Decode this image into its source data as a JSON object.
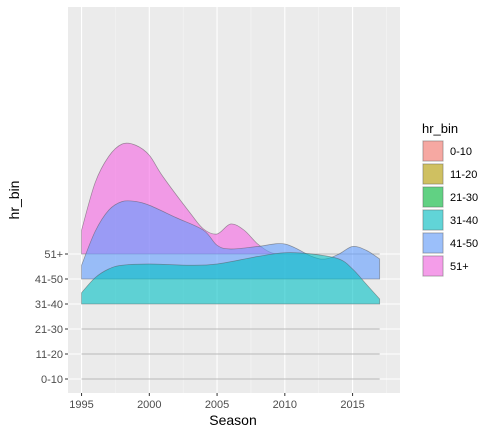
{
  "chart_data": {
    "type": "area",
    "subtype": "ridgeline-density",
    "xlabel": "Season",
    "ylabel": "hr_bin",
    "xlim": [
      1994.0,
      2018.5
    ],
    "x_ticks": [
      1995,
      2000,
      2005,
      2010,
      2015
    ],
    "categories": [
      "0-10",
      "11-20",
      "21-30",
      "31-40",
      "41-50",
      "51+"
    ],
    "row_scale": 1.0,
    "legend": {
      "title": "hr_bin",
      "position": "right"
    },
    "grid": true,
    "panel_background": "#ebebeb",
    "series": [
      {
        "name": "0-10",
        "color": "#F8766D",
        "x": [
          1995,
          2017
        ],
        "density": [
          0.0,
          0.0
        ]
      },
      {
        "name": "11-20",
        "color": "#B79F00",
        "x": [
          1995,
          2017
        ],
        "density": [
          0.0,
          0.0
        ]
      },
      {
        "name": "21-30",
        "color": "#00BA38",
        "x": [
          1995,
          2017
        ],
        "density": [
          0.0,
          0.0
        ]
      },
      {
        "name": "31-40",
        "color": "#00BFC4",
        "x": [
          1995,
          1996,
          1997,
          1998,
          2000,
          2003,
          2005,
          2008,
          2010,
          2012,
          2014,
          2015,
          2016,
          2017
        ],
        "density": [
          0.45,
          1.05,
          1.4,
          1.55,
          1.6,
          1.55,
          1.6,
          1.9,
          2.05,
          2.0,
          1.8,
          1.4,
          0.8,
          0.2
        ]
      },
      {
        "name": "41-50",
        "color": "#619CFF",
        "x": [
          1995,
          1996,
          1997,
          1998,
          1999,
          2000,
          2002,
          2004,
          2005,
          2006,
          2008,
          2010,
          2012,
          2013,
          2014,
          2015,
          2016,
          2017
        ],
        "density": [
          0.55,
          1.9,
          2.75,
          3.1,
          3.1,
          2.95,
          2.45,
          1.95,
          1.35,
          1.2,
          1.3,
          1.4,
          0.9,
          0.8,
          1.0,
          1.3,
          1.15,
          0.8
        ]
      },
      {
        "name": "51+",
        "color": "#F564E3",
        "x": [
          1995,
          1996,
          1997,
          1998,
          1999,
          2000,
          2001,
          2003,
          2004,
          2005,
          2006,
          2007,
          2008,
          2009,
          2010,
          2012,
          2014,
          2015,
          2016,
          2017
        ],
        "density": [
          0.95,
          2.85,
          3.9,
          4.4,
          4.35,
          3.95,
          3.1,
          1.65,
          1.0,
          0.8,
          1.2,
          0.95,
          0.4,
          0.05,
          0.0,
          0.0,
          0.0,
          0.0,
          0.0,
          0.0
        ]
      }
    ],
    "alpha": 0.6
  }
}
